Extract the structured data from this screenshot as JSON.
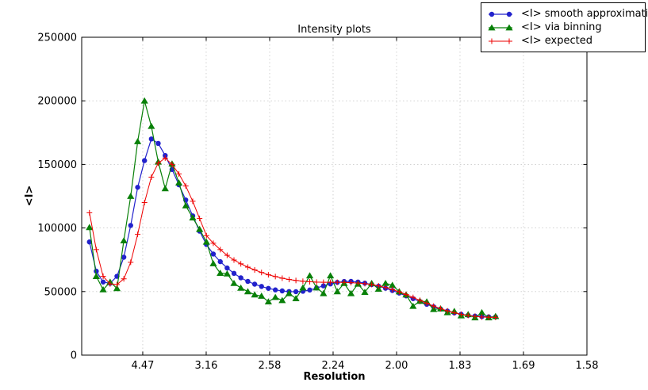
{
  "title": "Intensity plots",
  "axes": {
    "xlabel": "Resolution",
    "ylabel": "<I>",
    "x_tick_labels": [
      "4.47",
      "3.16",
      "2.58",
      "2.24",
      "2.00",
      "1.83",
      "1.69",
      "1.58"
    ],
    "x_tick_values": [
      0.05,
      0.1,
      0.15,
      0.2,
      0.25,
      0.3,
      0.35,
      0.4
    ],
    "y_tick_labels": [
      "0",
      "50000",
      "100000",
      "150000",
      "200000",
      "250000"
    ],
    "y_tick_values": [
      0,
      50000,
      100000,
      150000,
      200000,
      250000
    ],
    "xlim": [
      0.0019,
      0.4
    ],
    "ylim": [
      0,
      250000
    ],
    "grid": true,
    "grid_color": "#cccccc",
    "axis_color": "#000000"
  },
  "chart_data": {
    "type": "line",
    "x_units": "1/d^2 (tick labels show resolution d)",
    "x": [
      0.008,
      0.0134,
      0.0188,
      0.0243,
      0.0297,
      0.0351,
      0.0405,
      0.046,
      0.0514,
      0.0568,
      0.0622,
      0.0677,
      0.0731,
      0.0785,
      0.0839,
      0.0894,
      0.0948,
      0.1002,
      0.1056,
      0.1111,
      0.1165,
      0.1219,
      0.1273,
      0.1328,
      0.1382,
      0.1436,
      0.149,
      0.1545,
      0.1599,
      0.1653,
      0.1707,
      0.1762,
      0.1816,
      0.187,
      0.1924,
      0.1979,
      0.2033,
      0.2087,
      0.2141,
      0.2196,
      0.225,
      0.2304,
      0.2358,
      0.2413,
      0.2467,
      0.2521,
      0.2575,
      0.263,
      0.2684,
      0.2738,
      0.2792,
      0.2847,
      0.2901,
      0.2955,
      0.3009,
      0.3064,
      0.3118,
      0.3172,
      0.3226,
      0.328
    ],
    "series": [
      {
        "id": "smooth-approximation",
        "name": "<I> smooth approximation",
        "color": "#2222cc",
        "marker": "circle",
        "values": [
          89000,
          66000,
          57500,
          56500,
          62000,
          77000,
          102000,
          132000,
          153000,
          170000,
          166500,
          157000,
          146000,
          134000,
          122000,
          109500,
          97500,
          87000,
          79500,
          73500,
          68500,
          64300,
          60800,
          58000,
          55800,
          54000,
          52500,
          51300,
          50500,
          50000,
          49900,
          50200,
          51200,
          52800,
          54500,
          56000,
          57200,
          57900,
          58000,
          57500,
          56600,
          55500,
          54200,
          52600,
          50800,
          48800,
          46600,
          44400,
          42200,
          40000,
          38000,
          36200,
          34600,
          33200,
          32100,
          31300,
          30700,
          30300,
          30100,
          30000
        ]
      },
      {
        "id": "via-binning",
        "name": "<I> via binning",
        "color": "#088008",
        "marker": "triangle",
        "values": [
          100500,
          62000,
          51500,
          57500,
          52500,
          90000,
          125000,
          168000,
          200000,
          180000,
          152000,
          131000,
          150500,
          135500,
          117500,
          108000,
          99000,
          89000,
          72000,
          64500,
          64000,
          56500,
          52800,
          50000,
          47500,
          46500,
          42000,
          45500,
          43000,
          48500,
          44500,
          53000,
          62500,
          53000,
          48500,
          62500,
          50000,
          56500,
          48500,
          56000,
          49500,
          56500,
          52000,
          56500,
          55000,
          50000,
          47500,
          38500,
          42500,
          42000,
          36000,
          36500,
          33500,
          34500,
          31000,
          32000,
          29500,
          33500,
          29500,
          30500
        ]
      },
      {
        "id": "expected",
        "name": "<I> expected",
        "color": "#ee0000",
        "marker": "plus",
        "values": [
          112000,
          83000,
          62000,
          56000,
          55500,
          60000,
          73000,
          95000,
          120000,
          140000,
          151000,
          155000,
          150000,
          142500,
          133000,
          121000,
          107500,
          94000,
          88000,
          83000,
          78500,
          74800,
          71800,
          69200,
          67000,
          65000,
          63200,
          61800,
          60500,
          59500,
          58700,
          58100,
          57700,
          57400,
          57300,
          57300,
          57300,
          57200,
          57000,
          56700,
          56200,
          55500,
          54500,
          53200,
          51600,
          49800,
          47700,
          45400,
          43100,
          40800,
          38600,
          36600,
          34800,
          33300,
          32100,
          31200,
          30500,
          30000,
          29800,
          29700
        ]
      }
    ]
  },
  "legend": {
    "items": [
      {
        "label": "<I> smooth approximation"
      },
      {
        "label": "<I> via binning"
      },
      {
        "label": "<I> expected"
      }
    ]
  }
}
